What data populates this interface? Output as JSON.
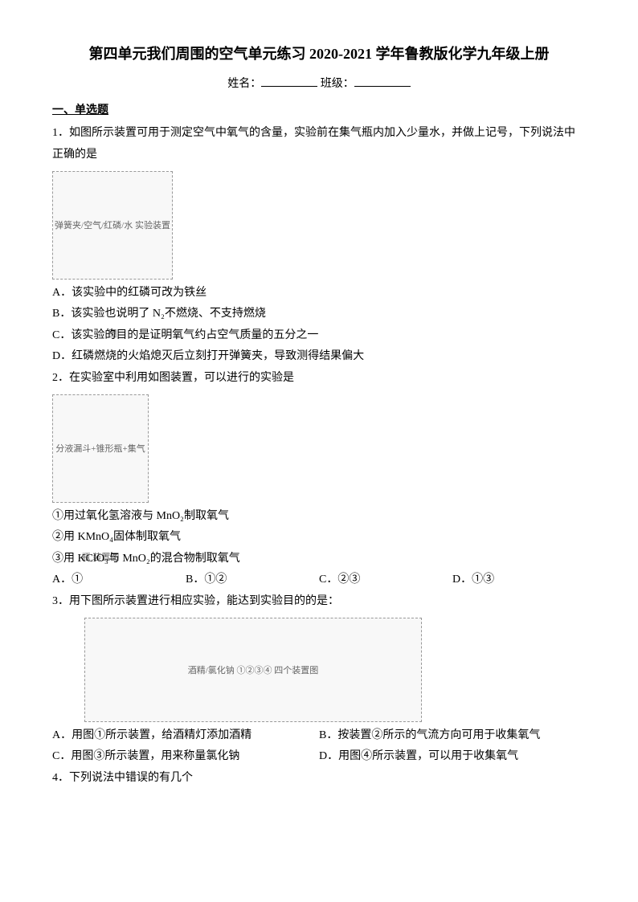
{
  "title": "第四单元我们周围的空气单元练习 2020-2021 学年鲁教版化学九年级上册",
  "info": {
    "name_label": "姓名：",
    "class_label": "班级："
  },
  "section1_header": "一、单选题",
  "q1": {
    "stem": "1．如图所示装置可用于测定空气中氧气的含量，实验前在集气瓶内加入少量水，并做上记号，下列说法中正确的是",
    "img_alt": "弹簧夹/空气/红磷/水 实验装置图",
    "optA": "A．该实验中的红磷可改为铁丝",
    "optB": "B．该实验也说明了 N₂不燃烧、不支持燃烧",
    "optC": "C．该实验的目的是证明氧气约占空气质量的五分之一",
    "optD": "D．红磷燃烧的火焰熄灭后立刻打开弹簧夹，导致测得结果偏大"
  },
  "q2": {
    "stem": "2．在实验室中利用如图装置，可以进行的实验是",
    "img_alt": "分液漏斗+锥形瓶+集气瓶 装置图",
    "line1": "①用过氧化氢溶液与 MnO₂制取氧气",
    "line2": "②用 KMnO₄固体制取氧气",
    "line3": "③用 KClO₃与 MnO₂的混合物制取氧气",
    "optA": "A．①",
    "optB": "B．①②",
    "optC": "C．②③",
    "optD": "D．①③"
  },
  "q3": {
    "stem": "3．用下图所示装置进行相应实验，能达到实验目的的是：",
    "img_alt": "酒精/氯化钠 ①②③④ 四个装置图",
    "optA": "A．用图①所示装置，给酒精灯添加酒精",
    "optB": "B．按装置②所示的气流方向可用于收集氧气",
    "optC": "C．用图③所示装置，用来称量氯化钠",
    "optD": "D．用图④所示装置，可以用于收集氧气"
  },
  "q4": {
    "stem": "4．下列说法中错误的有几个"
  }
}
